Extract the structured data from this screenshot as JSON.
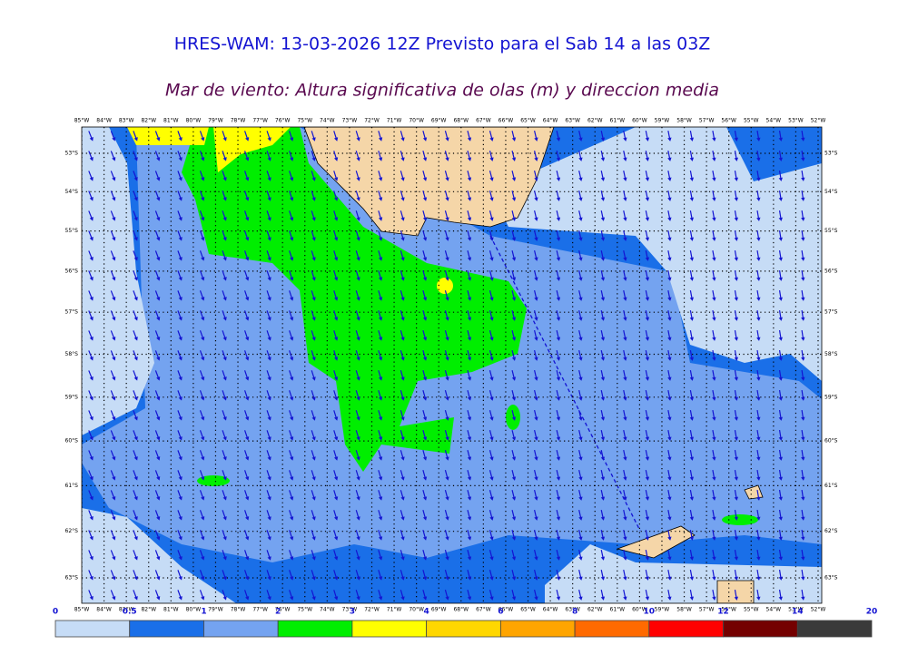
{
  "title": "HRES-WAM: 13-03-2026 12Z Previsto para el Sab 14 a las 03Z",
  "subtitle": "Mar de viento: Altura significativa de olas (m) y direccion media",
  "longitudes": [
    "85°W",
    "84°W",
    "83°W",
    "82°W",
    "81°W",
    "80°W",
    "79°W",
    "78°W",
    "77°W",
    "76°W",
    "75°W",
    "74°W",
    "73°W",
    "72°W",
    "71°W",
    "70°W",
    "69°W",
    "68°W",
    "67°W",
    "66°W",
    "65°W",
    "64°W",
    "63°W",
    "62°W",
    "61°W",
    "60°W",
    "59°W",
    "58°W",
    "57°W",
    "56°W",
    "55°W",
    "54°W",
    "53°W",
    "52°W"
  ],
  "latitudes": [
    "53°S",
    "54°S",
    "55°S",
    "56°S",
    "57°S",
    "58°S",
    "59°S",
    "60°S",
    "61°S",
    "62°S",
    "63°S"
  ],
  "colorbar": {
    "levels": [
      0,
      0.5,
      1,
      2,
      3,
      4,
      6,
      8,
      10,
      12,
      14,
      20
    ],
    "colors": [
      "#c6dcf6",
      "#1a6fe8",
      "#74a3f0",
      "#00ee00",
      "#ffff00",
      "#ffd700",
      "#ffa500",
      "#ff6a00",
      "#ff0000",
      "#740000",
      "#3a3a3a"
    ]
  }
}
